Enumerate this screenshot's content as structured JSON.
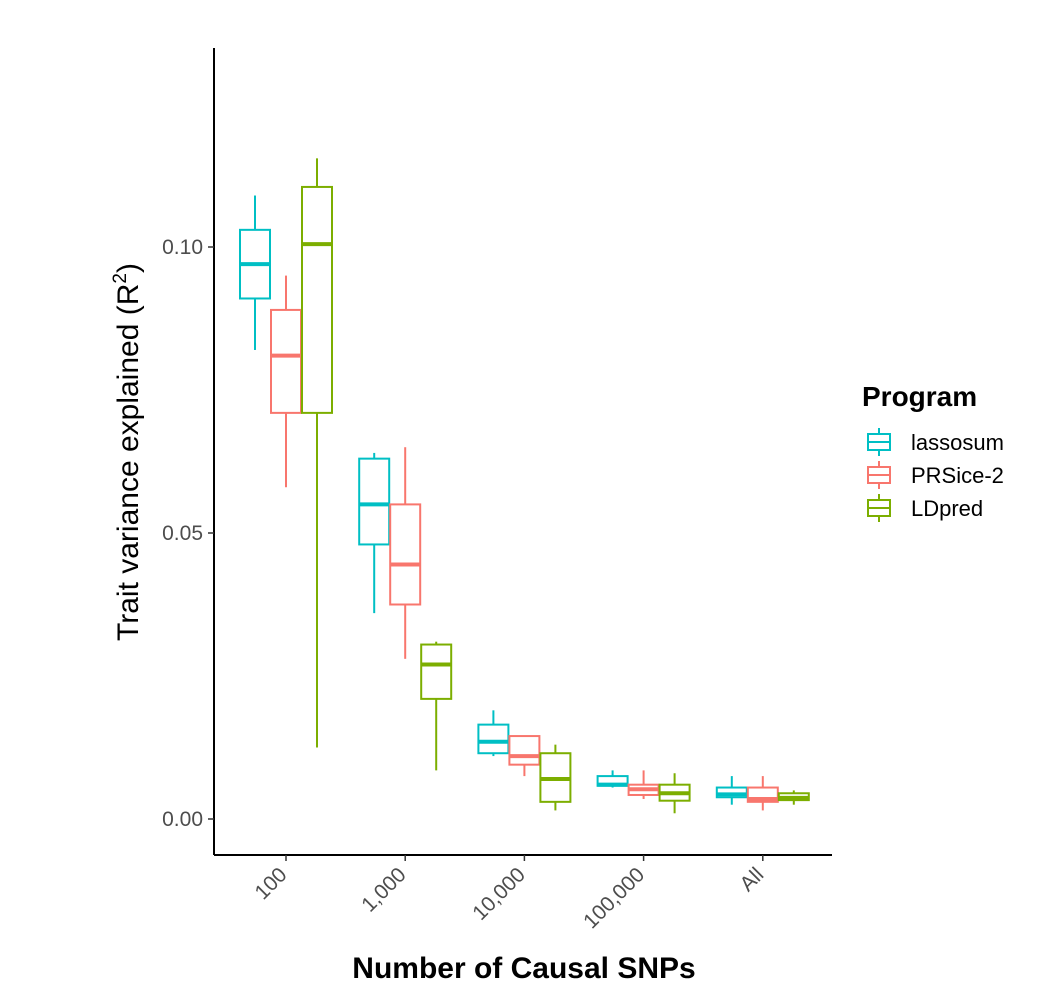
{
  "chart_data": {
    "type": "boxplot",
    "xlabel": "Number of Causal SNPs",
    "ylabel_main": "Trait variance explained (R",
    "ylabel_sup": "2",
    "ylabel_close": ")",
    "categories": [
      "100",
      "1,000",
      "10,000",
      "100,000",
      "All"
    ],
    "ylim": [
      -0.006,
      0.135
    ],
    "yticks": [
      0.0,
      0.05,
      0.1
    ],
    "ytick_labels": [
      "0.00",
      "0.05",
      "0.10"
    ],
    "grid": false,
    "legend": {
      "title": "Program",
      "position": "right"
    },
    "series": [
      {
        "name": "lassosum",
        "color": "#00BFC4",
        "boxes": [
          {
            "min": 0.082,
            "q1": 0.091,
            "median": 0.097,
            "q3": 0.103,
            "max": 0.109
          },
          {
            "min": 0.036,
            "q1": 0.048,
            "median": 0.055,
            "q3": 0.063,
            "max": 0.064
          },
          {
            "min": 0.011,
            "q1": 0.0115,
            "median": 0.0135,
            "q3": 0.0165,
            "max": 0.019
          },
          {
            "min": 0.0055,
            "q1": 0.0058,
            "median": 0.006,
            "q3": 0.0075,
            "max": 0.0085
          },
          {
            "min": 0.0025,
            "q1": 0.0038,
            "median": 0.0043,
            "q3": 0.0055,
            "max": 0.0075
          }
        ]
      },
      {
        "name": "PRSice-2",
        "color": "#F8766D",
        "boxes": [
          {
            "min": 0.058,
            "q1": 0.071,
            "median": 0.081,
            "q3": 0.089,
            "max": 0.095
          },
          {
            "min": 0.028,
            "q1": 0.0375,
            "median": 0.0445,
            "q3": 0.055,
            "max": 0.065
          },
          {
            "min": 0.0075,
            "q1": 0.0095,
            "median": 0.011,
            "q3": 0.0145,
            "max": 0.0145
          },
          {
            "min": 0.0035,
            "q1": 0.0042,
            "median": 0.0052,
            "q3": 0.006,
            "max": 0.0085
          },
          {
            "min": 0.0015,
            "q1": 0.003,
            "median": 0.0035,
            "q3": 0.0055,
            "max": 0.0075
          }
        ]
      },
      {
        "name": "LDpred",
        "color": "#7CAE00",
        "boxes": [
          {
            "min": 0.0125,
            "q1": 0.071,
            "median": 0.1005,
            "q3": 0.1105,
            "max": 0.1155
          },
          {
            "min": 0.0085,
            "q1": 0.021,
            "median": 0.027,
            "q3": 0.0305,
            "max": 0.031
          },
          {
            "min": 0.0015,
            "q1": 0.003,
            "median": 0.007,
            "q3": 0.0115,
            "max": 0.013
          },
          {
            "min": 0.001,
            "q1": 0.0032,
            "median": 0.0045,
            "q3": 0.006,
            "max": 0.008
          },
          {
            "min": 0.0025,
            "q1": 0.0033,
            "median": 0.0037,
            "q3": 0.0045,
            "max": 0.005
          }
        ]
      }
    ]
  }
}
